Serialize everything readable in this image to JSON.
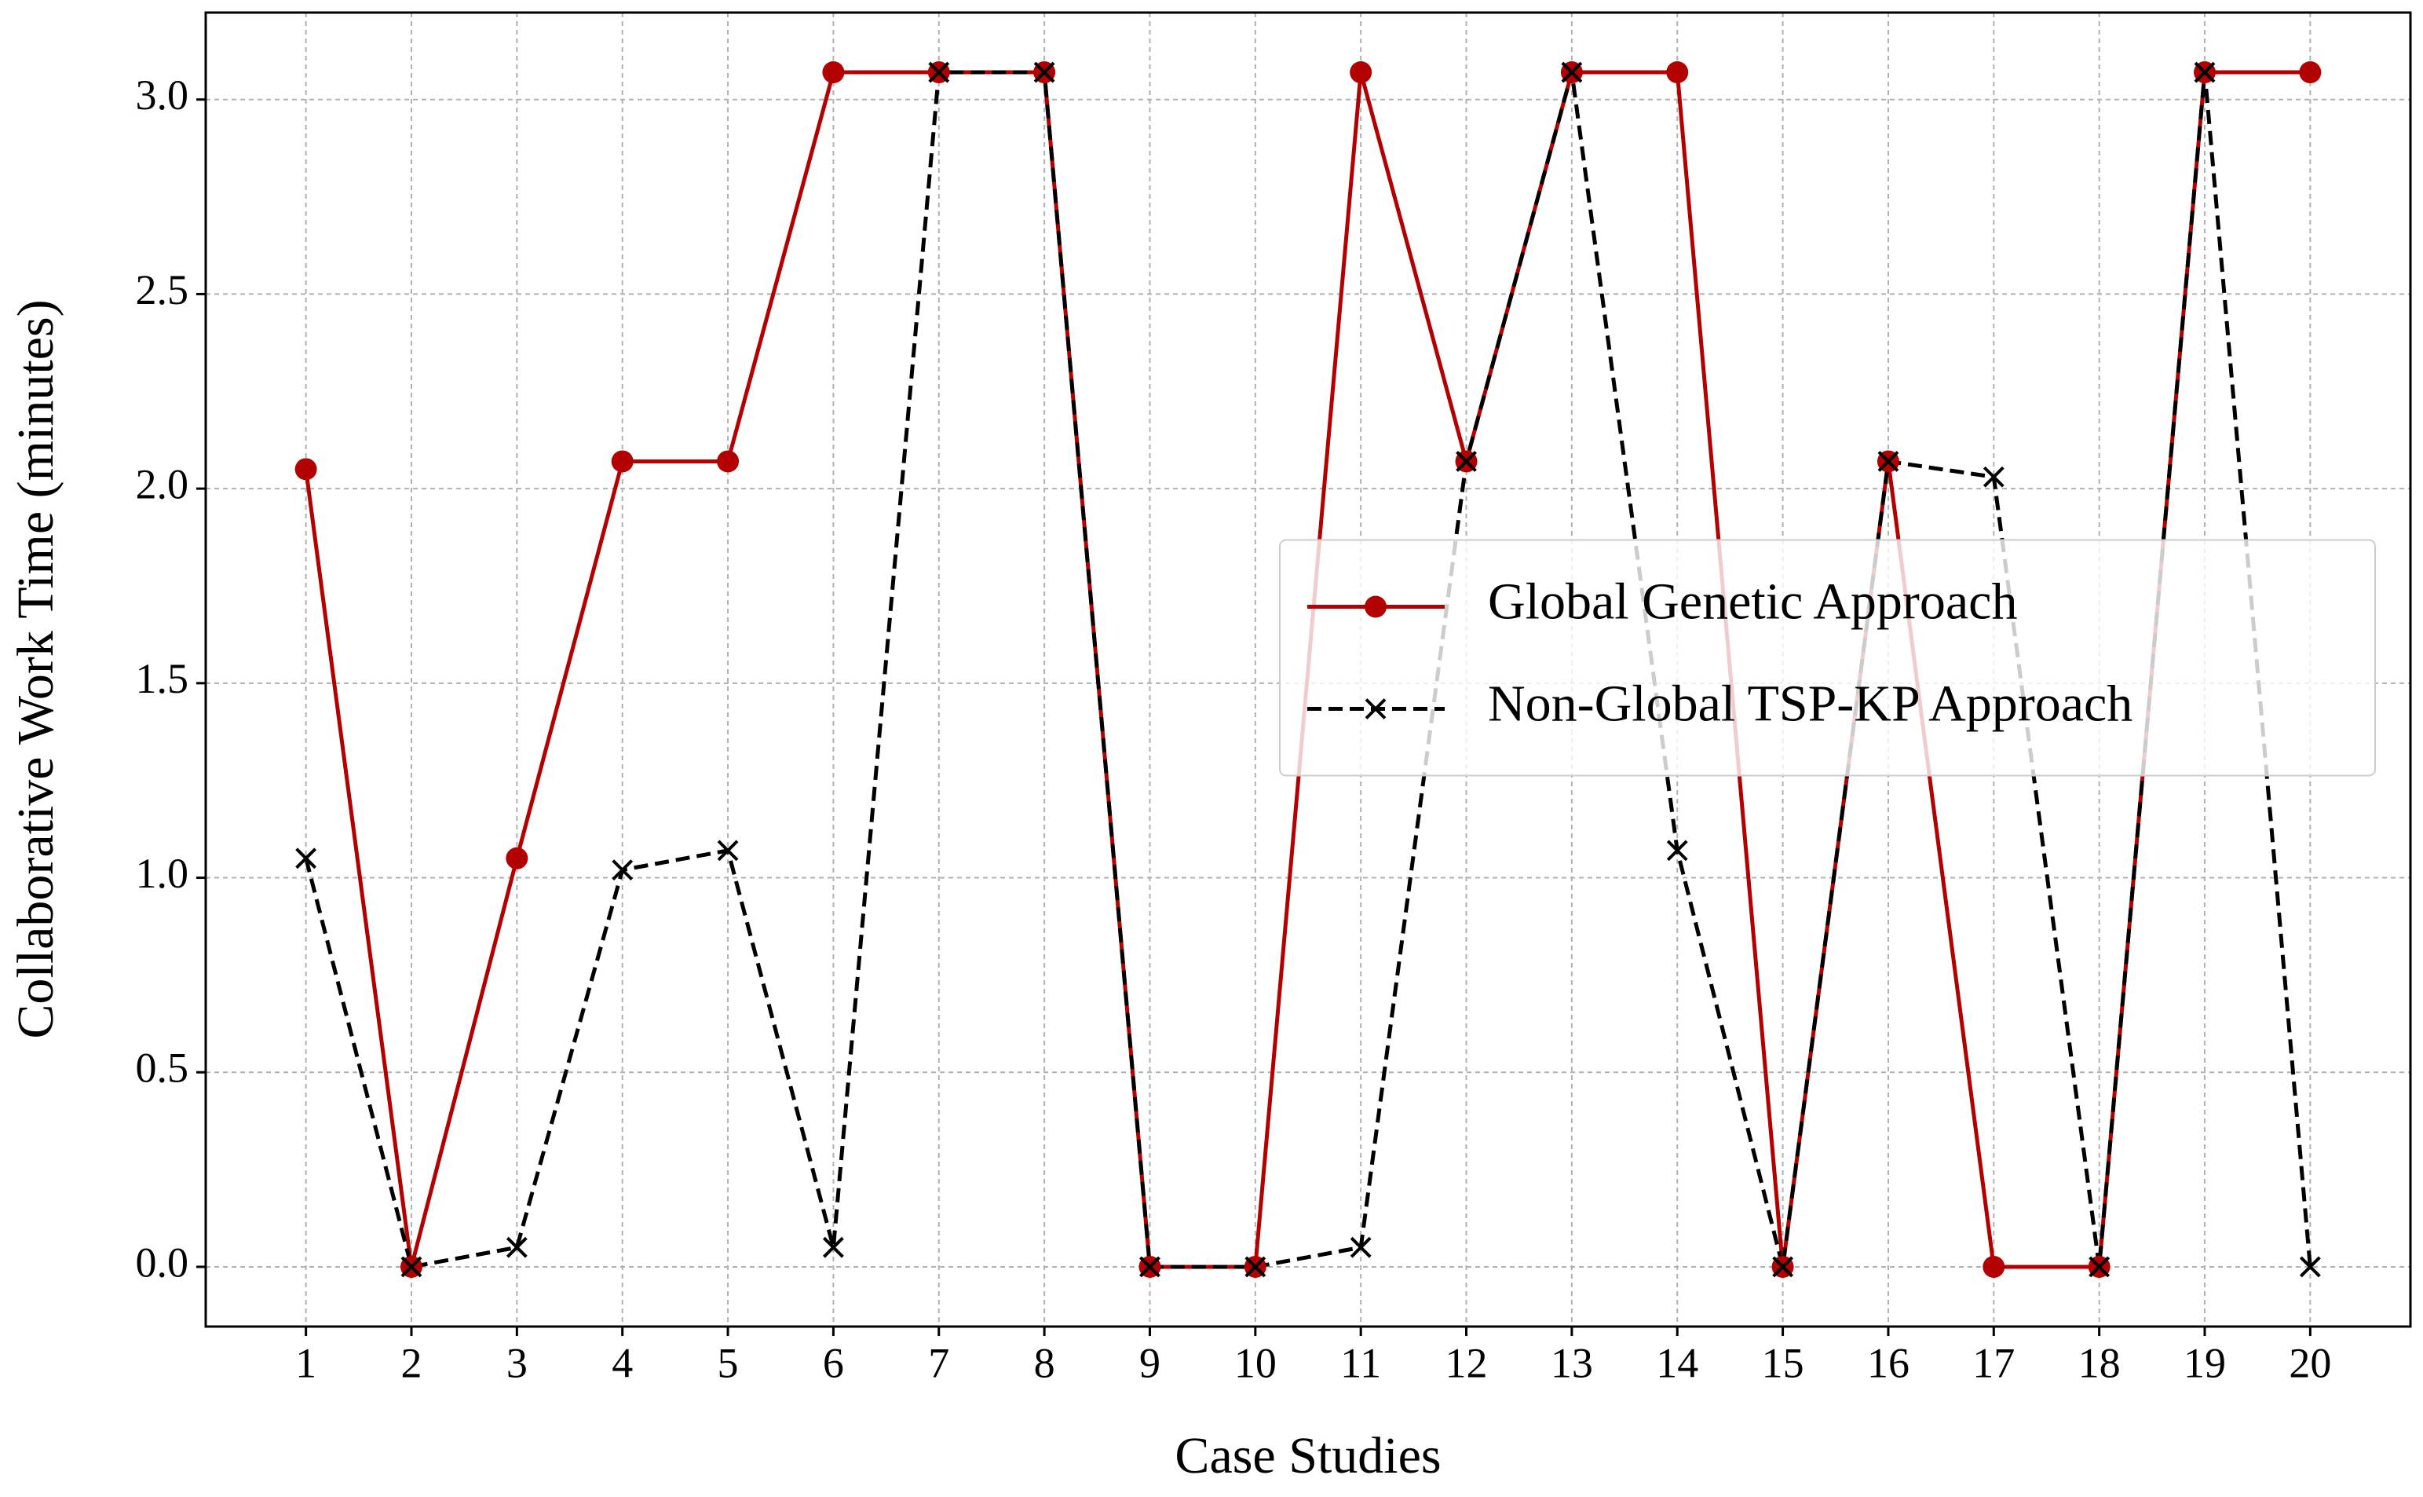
{
  "chart_data": {
    "type": "line",
    "x_label": "Case Studies",
    "y_label": "Collaborative Work Time (minutes)",
    "x": [
      1,
      2,
      3,
      4,
      5,
      6,
      7,
      8,
      9,
      10,
      11,
      12,
      13,
      14,
      15,
      16,
      17,
      18,
      19,
      20
    ],
    "series": [
      {
        "name": "Global Genetic Approach",
        "color": "#b30000",
        "linestyle": "solid",
        "marker": "o",
        "values": [
          2.05,
          0,
          1.05,
          2.07,
          2.07,
          3.07,
          3.07,
          3.07,
          0,
          0,
          3.07,
          2.07,
          3.07,
          3.07,
          0,
          2.07,
          0,
          0,
          3.07,
          3.07
        ]
      },
      {
        "name": "Non-Global TSP-KP Approach",
        "color": "#000000",
        "linestyle": "dashed",
        "marker": "x",
        "values": [
          1.05,
          0,
          0.05,
          1.02,
          1.07,
          0.05,
          3.07,
          3.07,
          0,
          0,
          0.05,
          2.07,
          3.07,
          1.07,
          0,
          2.07,
          2.03,
          0,
          3.07,
          0
        ]
      }
    ],
    "xlim": [
      0.05,
      20.95
    ],
    "ylim": [
      -0.1535,
      3.2235
    ],
    "xticks": [
      1,
      2,
      3,
      4,
      5,
      6,
      7,
      8,
      9,
      10,
      11,
      12,
      13,
      14,
      15,
      16,
      17,
      18,
      19,
      20
    ],
    "yticks": [
      {
        "value": 0,
        "label": "0.0"
      },
      0.5,
      {
        "value": 1,
        "label": "1.0"
      },
      1.5,
      {
        "value": 2,
        "label": "2.0"
      },
      2.5,
      {
        "value": 3,
        "label": "3.0"
      }
    ],
    "grid": true,
    "legend": "center right"
  }
}
